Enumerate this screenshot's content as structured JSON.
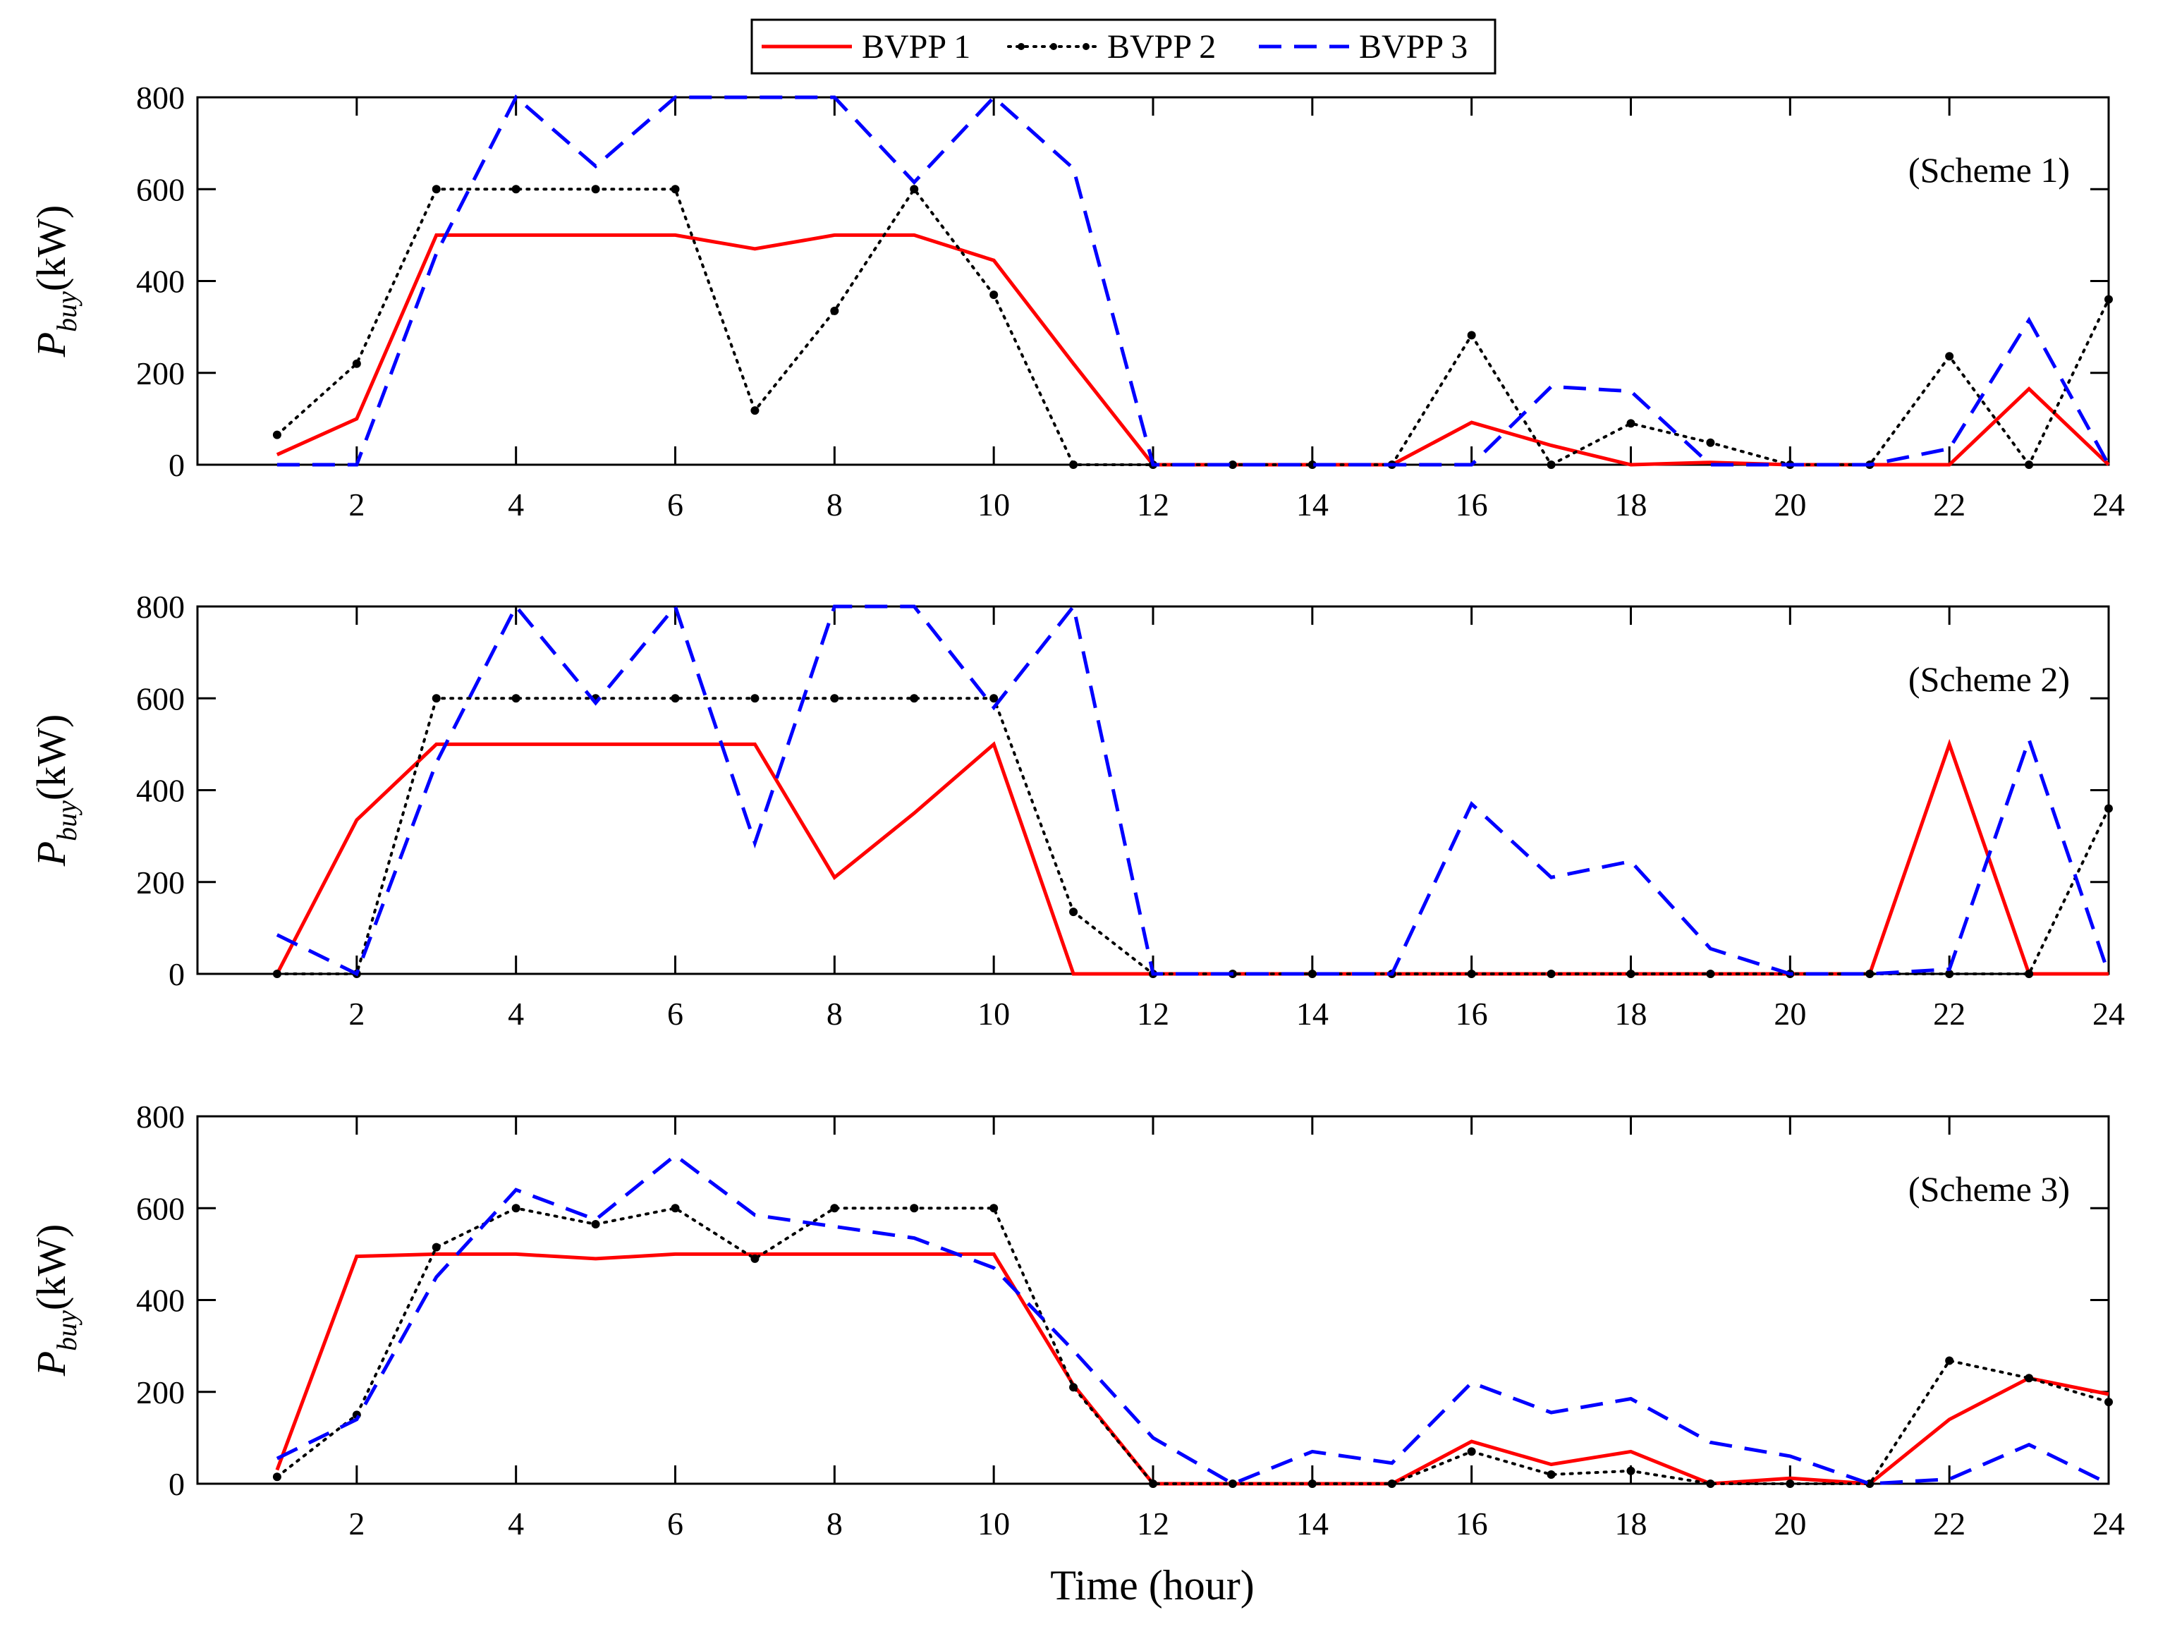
{
  "chart_data": {
    "type": "line",
    "xlabel": "Time (hour)",
    "ylabel_main": "P",
    "ylabel_sub": "buy",
    "ylabel_unit": "(kW)",
    "x": [
      1,
      2,
      3,
      4,
      5,
      6,
      7,
      8,
      9,
      10,
      11,
      12,
      13,
      14,
      15,
      16,
      17,
      18,
      19,
      20,
      21,
      22,
      23,
      24
    ],
    "x_ticks": [
      2,
      4,
      6,
      8,
      10,
      12,
      14,
      16,
      18,
      20,
      22,
      24
    ],
    "xlim": [
      0,
      24
    ],
    "ylim": [
      0,
      800
    ],
    "y_ticks": [
      0,
      200,
      400,
      600,
      800
    ],
    "legend": [
      {
        "name": "BVPP 1",
        "color": "#ff0000",
        "style": "solid"
      },
      {
        "name": "BVPP 2",
        "color": "#000000",
        "style": "dotted-marker"
      },
      {
        "name": "BVPP 3",
        "color": "#0000ff",
        "style": "dashed"
      }
    ],
    "panels": [
      {
        "label": "(Scheme 1)",
        "series": [
          {
            "name": "BVPP 1",
            "values": [
              22,
              100,
              500,
              500,
              500,
              500,
              470,
              500,
              500,
              445,
              220,
              0,
              0,
              0,
              0,
              92,
              42,
              0,
              5,
              0,
              0,
              0,
              165,
              0
            ]
          },
          {
            "name": "BVPP 2",
            "values": [
              65,
              220,
              600,
              600,
              600,
              600,
              118,
              335,
              600,
              370,
              0,
              0,
              0,
              0,
              0,
              282,
              0,
              90,
              48,
              0,
              0,
              236,
              0,
              360
            ]
          },
          {
            "name": "BVPP 3",
            "values": [
              0,
              0,
              460,
              800,
              650,
              800,
              800,
              800,
              615,
              800,
              645,
              0,
              0,
              0,
              0,
              0,
              170,
              160,
              0,
              0,
              0,
              35,
              315,
              0
            ]
          }
        ]
      },
      {
        "label": "(Scheme 2)",
        "series": [
          {
            "name": "BVPP 1",
            "values": [
              0,
              335,
              500,
              500,
              500,
              500,
              500,
              210,
              350,
              500,
              0,
              0,
              0,
              0,
              0,
              0,
              0,
              0,
              0,
              0,
              0,
              500,
              0,
              0
            ]
          },
          {
            "name": "BVPP 2",
            "values": [
              0,
              0,
              600,
              600,
              600,
              600,
              600,
              600,
              600,
              600,
              135,
              0,
              0,
              0,
              0,
              0,
              0,
              0,
              0,
              0,
              0,
              0,
              0,
              360
            ]
          },
          {
            "name": "BVPP 3",
            "values": [
              85,
              0,
              460,
              800,
              590,
              800,
              285,
              800,
              800,
              580,
              800,
              0,
              0,
              0,
              0,
              370,
              210,
              245,
              55,
              0,
              0,
              10,
              510,
              0
            ]
          }
        ]
      },
      {
        "label": "(Scheme 3)",
        "series": [
          {
            "name": "BVPP 1",
            "values": [
              30,
              495,
              500,
              500,
              490,
              500,
              500,
              500,
              500,
              500,
              215,
              0,
              0,
              0,
              0,
              92,
              42,
              70,
              0,
              12,
              0,
              140,
              230,
              195
            ]
          },
          {
            "name": "BVPP 2",
            "values": [
              15,
              150,
              515,
              600,
              565,
              600,
              490,
              600,
              600,
              600,
              210,
              0,
              0,
              0,
              0,
              70,
              20,
              28,
              0,
              0,
              0,
              268,
              230,
              178
            ]
          },
          {
            "name": "BVPP 3",
            "values": [
              55,
              140,
              450,
              640,
              575,
              715,
              585,
              560,
              535,
              470,
              290,
              100,
              0,
              70,
              45,
              220,
              155,
              185,
              90,
              60,
              0,
              10,
              85,
              0
            ]
          }
        ]
      }
    ]
  }
}
